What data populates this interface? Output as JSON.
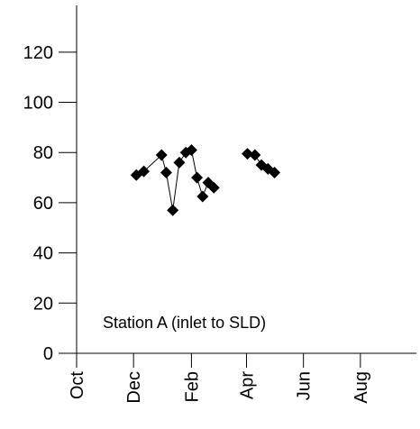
{
  "chart_data": {
    "type": "line",
    "annotation": "Station A (inlet to SLD)",
    "xlim": [
      "2000-10-01",
      "2001-09-30"
    ],
    "ylim": [
      0,
      130
    ],
    "x_ticks": [
      {
        "label": "Oct",
        "date": "2000-10-01"
      },
      {
        "label": "Dec",
        "date": "2000-12-01"
      },
      {
        "label": "Feb",
        "date": "2001-02-01"
      },
      {
        "label": "Apr",
        "date": "2001-04-01"
      },
      {
        "label": "Jun",
        "date": "2001-06-01"
      },
      {
        "label": "Aug",
        "date": "2001-08-01"
      }
    ],
    "y_ticks": [
      0,
      20,
      40,
      60,
      80,
      100,
      120
    ],
    "grid": false,
    "marker": "diamond",
    "colors": {
      "marker": "#000000",
      "line": "#000000",
      "axis": "#000000"
    },
    "segments": [
      {
        "points": [
          {
            "x": "2000-12-04",
            "y": 71
          },
          {
            "x": "2000-12-12",
            "y": 72.5
          },
          {
            "x": "2000-12-31",
            "y": 79
          },
          {
            "x": "2001-01-05",
            "y": 72
          },
          {
            "x": "2001-01-12",
            "y": 57
          },
          {
            "x": "2001-01-19",
            "y": 76
          },
          {
            "x": "2001-01-26",
            "y": 80
          },
          {
            "x": "2001-02-01",
            "y": 81
          },
          {
            "x": "2001-02-07",
            "y": 70
          },
          {
            "x": "2001-02-13",
            "y": 62.5
          },
          {
            "x": "2001-02-19",
            "y": 68
          },
          {
            "x": "2001-02-25",
            "y": 66
          }
        ]
      },
      {
        "points": [
          {
            "x": "2001-04-02",
            "y": 79.5
          },
          {
            "x": "2001-04-10",
            "y": 79
          },
          {
            "x": "2001-04-17",
            "y": 75
          },
          {
            "x": "2001-04-24",
            "y": 73.5
          },
          {
            "x": "2001-05-01",
            "y": 72
          }
        ]
      }
    ]
  }
}
